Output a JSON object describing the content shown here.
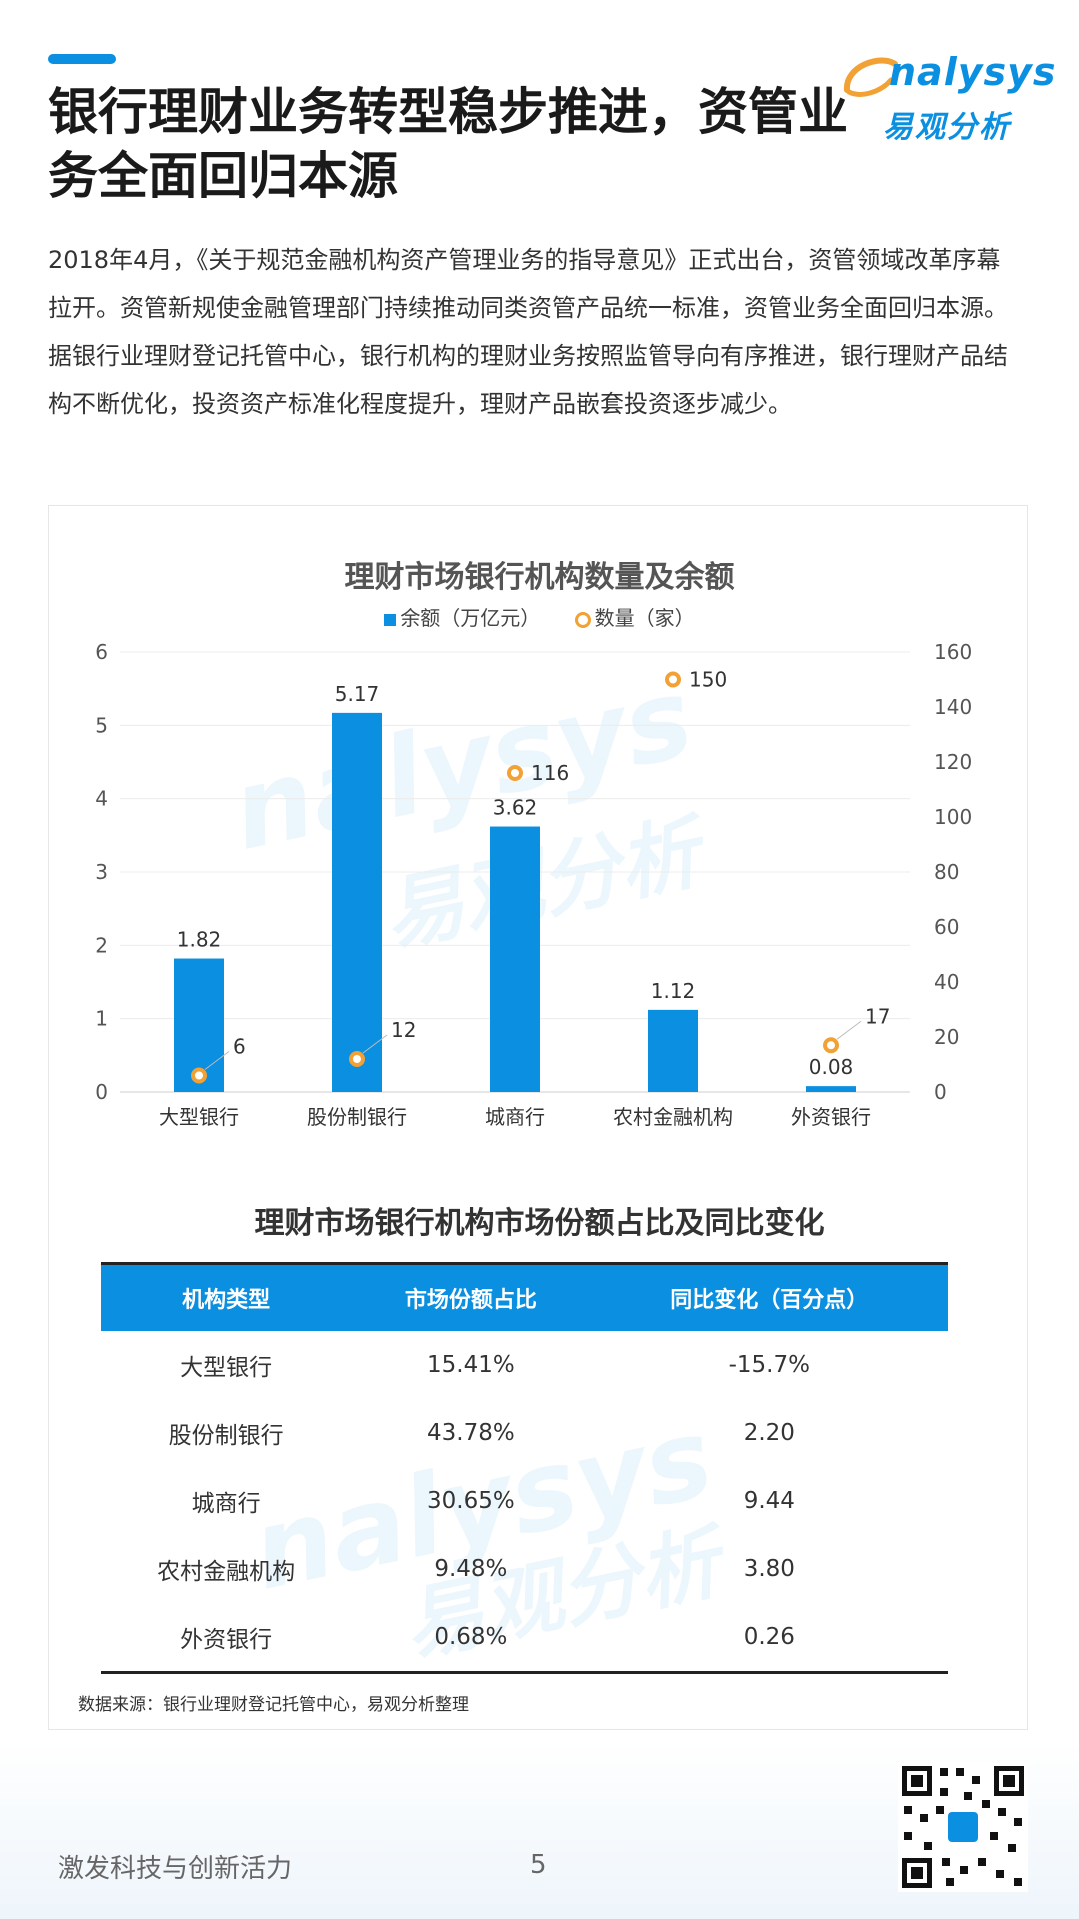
{
  "header": {
    "title": "银行理财业务转型稳步推进，资管业务全面回归本源",
    "logo_en": "nalysys",
    "logo_cn": "易观分析"
  },
  "intro": {
    "p1": "2018年4月，《关于规范金融机构资产管理业务的指导意见》正式出台，资管领域改革序幕拉开。资管新规使金融管理部门持续推动同类资管产品统一标准，资管业务全面回归本源。",
    "p2": "据银行业理财登记托管中心，银行机构的理财业务按照监管导向有序推进，银行理财产品结构不断优化，投资资产标准化程度提升，理财产品嵌套投资逐步减少。"
  },
  "chart_data": {
    "type": "bar",
    "title": "理财市场银行机构数量及余额",
    "categories": [
      "大型银行",
      "股份制银行",
      "城商行",
      "农村金融机构",
      "外资银行"
    ],
    "series": [
      {
        "name": "余额（万亿元）",
        "type": "bar",
        "axis": "left",
        "values": [
          1.82,
          5.17,
          3.62,
          1.12,
          0.08
        ]
      },
      {
        "name": "数量（家）",
        "type": "scatter",
        "axis": "right",
        "values": [
          6,
          12,
          116,
          150,
          17
        ]
      }
    ],
    "ylim_left": [
      0,
      6
    ],
    "ylim_right": [
      0,
      160
    ],
    "yticks_left": [
      0,
      1,
      2,
      3,
      4,
      5,
      6
    ],
    "yticks_right": [
      0,
      20,
      40,
      60,
      80,
      100,
      120,
      140,
      160
    ],
    "legend_position": "top-center",
    "grid": true,
    "colors": {
      "bar": "#0b8fe0",
      "marker": "#f2a134"
    }
  },
  "table": {
    "title": "理财市场银行机构市场份额占比及同比变化",
    "headers": [
      "机构类型",
      "市场份额占比",
      "同比变化（百分点）"
    ],
    "rows": [
      [
        "大型银行",
        "15.41%",
        "-15.7%"
      ],
      [
        "股份制银行",
        "43.78%",
        "2.20"
      ],
      [
        "城商行",
        "30.65%",
        "9.44"
      ],
      [
        "农村金融机构",
        "9.48%",
        "3.80"
      ],
      [
        "外资银行",
        "0.68%",
        "0.26"
      ]
    ]
  },
  "source": "数据来源：银行业理财登记托管中心，易观分析整理",
  "footer": {
    "slogan": "激发科技与创新活力",
    "page": "5"
  },
  "watermark": {
    "en": "nalysys",
    "cn": "易观分析"
  }
}
